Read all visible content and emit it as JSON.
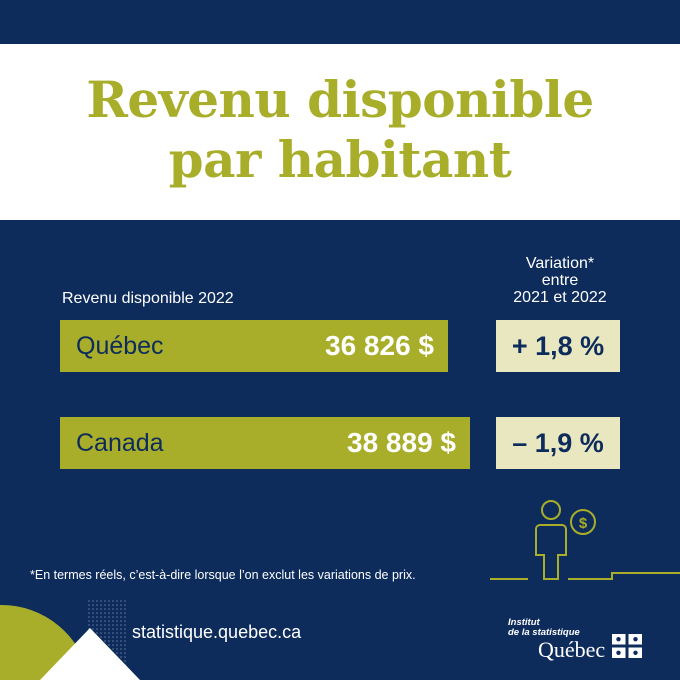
{
  "title_line1": "Revenu disponible",
  "title_line2": "par habitant",
  "chart_data": {
    "type": "bar",
    "title": "Revenu disponible par habitant",
    "categories": [
      "Québec",
      "Canada"
    ],
    "values": [
      36826,
      38889
    ],
    "value_labels": [
      "36 826 $",
      "38 889 $"
    ],
    "series_label": "Revenu disponible 2022",
    "variation_header": [
      "Variation*",
      "entre",
      "2021 et 2022"
    ],
    "variations": [
      "+ 1,8 %",
      "– 1,9 %"
    ],
    "variation_values": [
      1.8,
      -1.9
    ]
  },
  "footnote": "*En termes réels, c’est-à-dire lorsque l’on exclut les variations de prix.",
  "website": "statistique.quebec.ca",
  "logo": {
    "line1": "Institut",
    "line2": "de la statistique",
    "name": "Québec"
  },
  "colors": {
    "navy": "#0d2c5c",
    "olive": "#a8ad2a",
    "cream": "#e9e7c0",
    "white": "#ffffff"
  },
  "icons": [
    "person-money-icon",
    "quebec-flag-icon"
  ]
}
